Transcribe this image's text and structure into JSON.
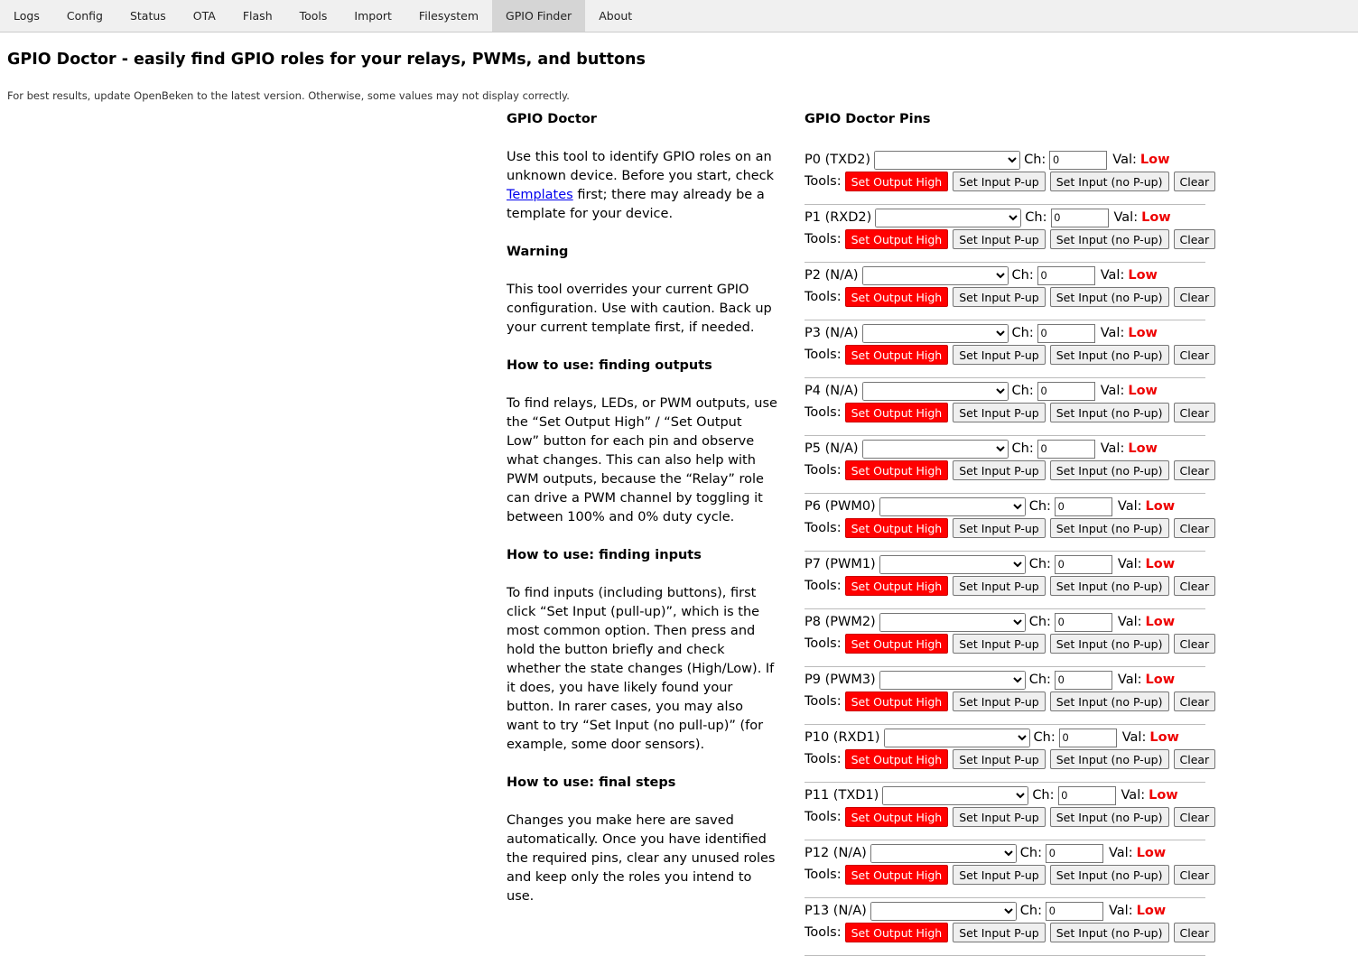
{
  "nav": {
    "tabs": [
      "Logs",
      "Config",
      "Status",
      "OTA",
      "Flash",
      "Tools",
      "Import",
      "Filesystem",
      "GPIO Finder",
      "About"
    ],
    "active": 8
  },
  "header": {
    "title": "GPIO Doctor - easily find GPIO roles for your relays, PWMs, and buttons",
    "note": "For best results, update OpenBeken to the latest version. Otherwise, some values may not display correctly."
  },
  "guide": {
    "heading": "GPIO Doctor",
    "intro": {
      "before": "Use this tool to identify GPIO roles on an unknown device. Before you start, check ",
      "link": "Templates",
      "after": " first; there may already be a template for your device."
    },
    "sections": [
      {
        "heading": "Warning",
        "text": "This tool overrides your current GPIO configuration. Use with caution. Back up your current template first, if needed."
      },
      {
        "heading": "How to use: finding outputs",
        "text": "To find relays, LEDs, or PWM outputs, use the “Set Output High” / “Set Output Low” button for each pin and observe what changes. This can also help with PWM outputs, because the “Relay” role can drive a PWM channel by toggling it between 100% and 0% duty cycle."
      },
      {
        "heading": "How to use: finding inputs",
        "text": "To find inputs (including buttons), first click “Set Input (pull-up)”, which is the most common option. Then press and hold the button briefly and check whether the state changes (High/Low). If it does, you have likely found your button. In rarer cases, you may also want to try “Set Input (no pull-up)” (for example, some door sensors)."
      },
      {
        "heading": "How to use: final steps",
        "text": "Changes you make here are saved automatically. Once you have identified the required pins, clear any unused roles and keep only the roles you intend to use."
      }
    ]
  },
  "pins": {
    "heading": "GPIO Doctor Pins",
    "labels": {
      "ch": "Ch:",
      "val": "Val:",
      "tools": "Tools:"
    },
    "buttons": [
      "Set Output High",
      "Set Input P-up",
      "Set Input (no P-up)",
      "Clear"
    ],
    "rows": [
      {
        "name": "P0 (TXD2)",
        "channel": "0",
        "value": "Low"
      },
      {
        "name": "P1 (RXD2)",
        "channel": "0",
        "value": "Low"
      },
      {
        "name": "P2 (N/A)",
        "channel": "0",
        "value": "Low"
      },
      {
        "name": "P3 (N/A)",
        "channel": "0",
        "value": "Low"
      },
      {
        "name": "P4 (N/A)",
        "channel": "0",
        "value": "Low"
      },
      {
        "name": "P5 (N/A)",
        "channel": "0",
        "value": "Low"
      },
      {
        "name": "P6 (PWM0)",
        "channel": "0",
        "value": "Low"
      },
      {
        "name": "P7 (PWM1)",
        "channel": "0",
        "value": "Low"
      },
      {
        "name": "P8 (PWM2)",
        "channel": "0",
        "value": "Low"
      },
      {
        "name": "P9 (PWM3)",
        "channel": "0",
        "value": "Low"
      },
      {
        "name": "P10 (RXD1)",
        "channel": "0",
        "value": "Low"
      },
      {
        "name": "P11 (TXD1)",
        "channel": "0",
        "value": "Low"
      },
      {
        "name": "P12 (N/A)",
        "channel": "0",
        "value": "Low"
      },
      {
        "name": "P13 (N/A)",
        "channel": "0",
        "value": "Low"
      }
    ]
  }
}
